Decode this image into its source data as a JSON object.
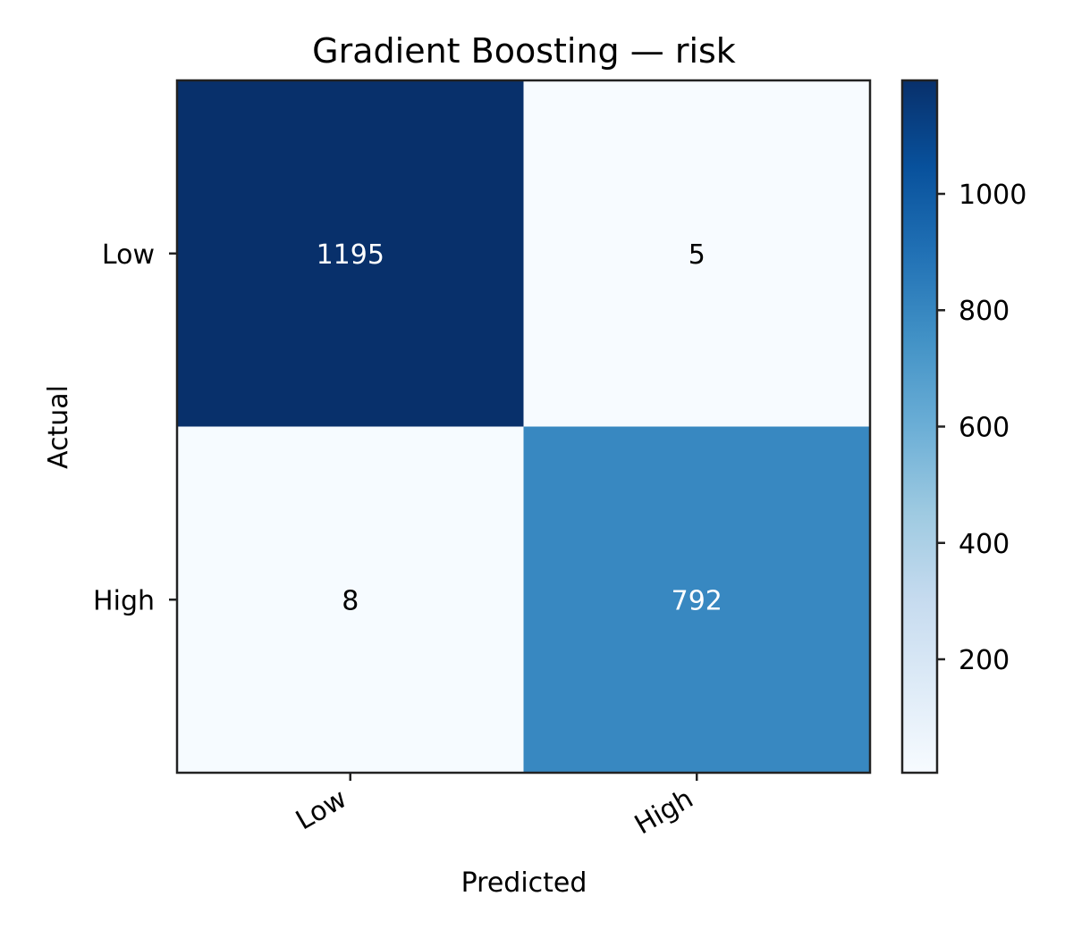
{
  "chart_data": {
    "type": "heatmap",
    "title": "Gradient Boosting — risk",
    "xlabel": "Predicted",
    "ylabel": "Actual",
    "x_categories": [
      "Low",
      "High"
    ],
    "y_categories": [
      "Low",
      "High"
    ],
    "values": [
      [
        1195,
        5
      ],
      [
        8,
        792
      ]
    ],
    "color_range": [
      5,
      1195
    ],
    "colormap": "Blues",
    "colorbar_ticks": [
      "200",
      "400",
      "600",
      "800",
      "1000"
    ],
    "grid": false
  }
}
